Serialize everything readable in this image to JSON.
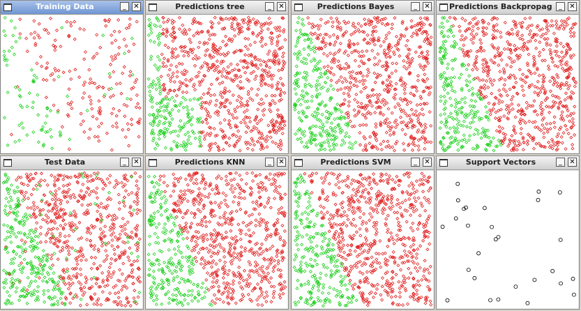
{
  "windows": [
    {
      "title": "Training Data"
    },
    {
      "title": "Predictions tree"
    },
    {
      "title": "Predictions Bayes"
    },
    {
      "title": "Predictions Backpropaga"
    },
    {
      "title": "Test Data"
    },
    {
      "title": "Predictions KNN"
    },
    {
      "title": "Predictions SVM"
    },
    {
      "title": "Support Vectors"
    }
  ]
}
